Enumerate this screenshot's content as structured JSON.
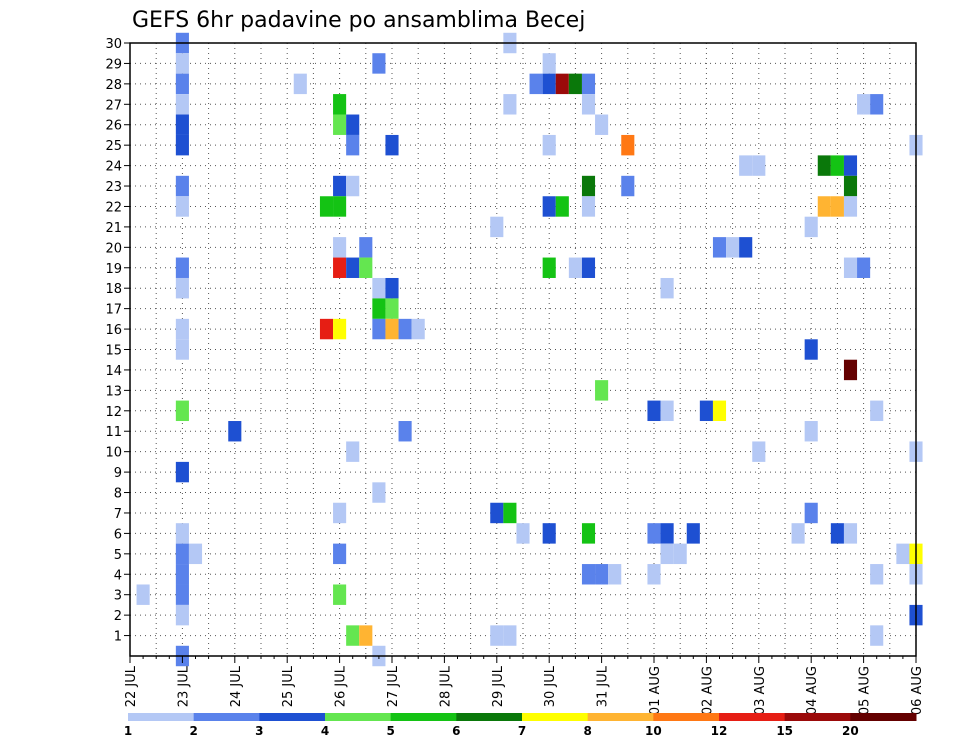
{
  "chart_data": {
    "type": "heatmap",
    "title": "GEFS 6hr padavine po ansamblima Becej",
    "x_tick_labels": [
      "22 JUL",
      "23 JUL",
      "24 JUL",
      "25 JUL",
      "26 JUL",
      "27 JUL",
      "28 JUL",
      "29 JUL",
      "30 JUL",
      "31 JUL",
      "01 AUG",
      "02 AUG",
      "03 AUG",
      "04 AUG",
      "05 AUG",
      "06 AUG"
    ],
    "y_tick_labels": [
      "1",
      "2",
      "3",
      "4",
      "5",
      "6",
      "7",
      "8",
      "9",
      "10",
      "11",
      "12",
      "13",
      "14",
      "15",
      "16",
      "17",
      "18",
      "19",
      "20",
      "21",
      "22",
      "23",
      "24",
      "25",
      "26",
      "27",
      "28",
      "29",
      "30"
    ],
    "x_range": [
      "22 JUL 00",
      "06 AUG 00"
    ],
    "y_range": [
      0,
      30
    ],
    "steps_per_day": 4,
    "grid": "dotted",
    "colorbar": {
      "placement": "bottom",
      "labels": [
        "1",
        "2",
        "3",
        "4",
        "5",
        "6",
        "7",
        "8",
        "10",
        "12",
        "15",
        "20"
      ],
      "colors": [
        "#b4c8f5",
        "#5a82eb",
        "#1e50d2",
        "#64e650",
        "#14c314",
        "#0a780a",
        "#ffff00",
        "#ffb432",
        "#ff7814",
        "#e61e14",
        "#9b0a0a",
        "#640000"
      ]
    },
    "cells": [
      {
        "t": 1,
        "m": 3,
        "c": 0
      },
      {
        "t": 4,
        "m": 30,
        "c": 1
      },
      {
        "t": 4,
        "m": 29,
        "c": 0
      },
      {
        "t": 4,
        "m": 28,
        "c": 1
      },
      {
        "t": 4,
        "m": 27,
        "c": 0
      },
      {
        "t": 4,
        "m": 26,
        "c": 2
      },
      {
        "t": 4,
        "m": 25,
        "c": 2
      },
      {
        "t": 4,
        "m": 23,
        "c": 1
      },
      {
        "t": 4,
        "m": 22,
        "c": 0
      },
      {
        "t": 4,
        "m": 19,
        "c": 1
      },
      {
        "t": 4,
        "m": 18,
        "c": 0
      },
      {
        "t": 4,
        "m": 16,
        "c": 0
      },
      {
        "t": 4,
        "m": 15,
        "c": 0
      },
      {
        "t": 4,
        "m": 12,
        "c": 3
      },
      {
        "t": 4,
        "m": 9,
        "c": 2
      },
      {
        "t": 4,
        "m": 6,
        "c": 0
      },
      {
        "t": 4,
        "m": 5,
        "c": 1
      },
      {
        "t": 4,
        "m": 4,
        "c": 1
      },
      {
        "t": 4,
        "m": 3,
        "c": 1
      },
      {
        "t": 4,
        "m": 2,
        "c": 0
      },
      {
        "t": 4,
        "m": 0,
        "c": 1
      },
      {
        "t": 5,
        "m": 5,
        "c": 0
      },
      {
        "t": 8,
        "m": 11,
        "c": 2
      },
      {
        "t": 13,
        "m": 28,
        "c": 0
      },
      {
        "t": 15,
        "m": 22,
        "c": 4
      },
      {
        "t": 15,
        "m": 16,
        "c": 9
      },
      {
        "t": 16,
        "m": 27,
        "c": 4
      },
      {
        "t": 16,
        "m": 26,
        "c": 3
      },
      {
        "t": 16,
        "m": 23,
        "c": 2
      },
      {
        "t": 16,
        "m": 22,
        "c": 4
      },
      {
        "t": 16,
        "m": 20,
        "c": 0
      },
      {
        "t": 16,
        "m": 19,
        "c": 9
      },
      {
        "t": 16,
        "m": 16,
        "c": 6
      },
      {
        "t": 16,
        "m": 7,
        "c": 0
      },
      {
        "t": 16,
        "m": 5,
        "c": 1
      },
      {
        "t": 16,
        "m": 3,
        "c": 3
      },
      {
        "t": 17,
        "m": 26,
        "c": 2
      },
      {
        "t": 17,
        "m": 25,
        "c": 1
      },
      {
        "t": 17,
        "m": 23,
        "c": 0
      },
      {
        "t": 17,
        "m": 19,
        "c": 2
      },
      {
        "t": 17,
        "m": 10,
        "c": 0
      },
      {
        "t": 17,
        "m": 1,
        "c": 3
      },
      {
        "t": 18,
        "m": 20,
        "c": 1
      },
      {
        "t": 18,
        "m": 19,
        "c": 3
      },
      {
        "t": 18,
        "m": 1,
        "c": 7
      },
      {
        "t": 19,
        "m": 29,
        "c": 1
      },
      {
        "t": 19,
        "m": 18,
        "c": 0
      },
      {
        "t": 19,
        "m": 17,
        "c": 4
      },
      {
        "t": 19,
        "m": 16,
        "c": 1
      },
      {
        "t": 19,
        "m": 8,
        "c": 0
      },
      {
        "t": 19,
        "m": 0,
        "c": 0
      },
      {
        "t": 20,
        "m": 25,
        "c": 2
      },
      {
        "t": 20,
        "m": 18,
        "c": 2
      },
      {
        "t": 20,
        "m": 17,
        "c": 3
      },
      {
        "t": 20,
        "m": 16,
        "c": 7
      },
      {
        "t": 21,
        "m": 16,
        "c": 1
      },
      {
        "t": 21,
        "m": 11,
        "c": 1
      },
      {
        "t": 22,
        "m": 16,
        "c": 0
      },
      {
        "t": 28,
        "m": 21,
        "c": 0
      },
      {
        "t": 28,
        "m": 7,
        "c": 2
      },
      {
        "t": 28,
        "m": 1,
        "c": 0
      },
      {
        "t": 29,
        "m": 30,
        "c": 0
      },
      {
        "t": 29,
        "m": 27,
        "c": 0
      },
      {
        "t": 29,
        "m": 7,
        "c": 4
      },
      {
        "t": 29,
        "m": 1,
        "c": 0
      },
      {
        "t": 30,
        "m": 6,
        "c": 0
      },
      {
        "t": 31,
        "m": 28,
        "c": 1
      },
      {
        "t": 32,
        "m": 29,
        "c": 0
      },
      {
        "t": 32,
        "m": 28,
        "c": 2
      },
      {
        "t": 32,
        "m": 25,
        "c": 0
      },
      {
        "t": 32,
        "m": 22,
        "c": 2
      },
      {
        "t": 32,
        "m": 19,
        "c": 4
      },
      {
        "t": 32,
        "m": 6,
        "c": 2
      },
      {
        "t": 33,
        "m": 28,
        "c": 10
      },
      {
        "t": 33,
        "m": 22,
        "c": 4
      },
      {
        "t": 34,
        "m": 28,
        "c": 5
      },
      {
        "t": 34,
        "m": 19,
        "c": 0
      },
      {
        "t": 35,
        "m": 28,
        "c": 1
      },
      {
        "t": 35,
        "m": 27,
        "c": 0
      },
      {
        "t": 35,
        "m": 23,
        "c": 5
      },
      {
        "t": 35,
        "m": 22,
        "c": 0
      },
      {
        "t": 35,
        "m": 19,
        "c": 2
      },
      {
        "t": 35,
        "m": 6,
        "c": 4
      },
      {
        "t": 35,
        "m": 4,
        "c": 1
      },
      {
        "t": 36,
        "m": 26,
        "c": 0
      },
      {
        "t": 36,
        "m": 13,
        "c": 3
      },
      {
        "t": 36,
        "m": 4,
        "c": 1
      },
      {
        "t": 37,
        "m": 4,
        "c": 0
      },
      {
        "t": 38,
        "m": 25,
        "c": 8
      },
      {
        "t": 38,
        "m": 23,
        "c": 1
      },
      {
        "t": 40,
        "m": 12,
        "c": 2
      },
      {
        "t": 40,
        "m": 6,
        "c": 1
      },
      {
        "t": 40,
        "m": 4,
        "c": 0
      },
      {
        "t": 41,
        "m": 18,
        "c": 0
      },
      {
        "t": 41,
        "m": 12,
        "c": 0
      },
      {
        "t": 41,
        "m": 6,
        "c": 2
      },
      {
        "t": 41,
        "m": 5,
        "c": 0
      },
      {
        "t": 42,
        "m": 5,
        "c": 0
      },
      {
        "t": 43,
        "m": 6,
        "c": 2
      },
      {
        "t": 44,
        "m": 12,
        "c": 2
      },
      {
        "t": 45,
        "m": 20,
        "c": 1
      },
      {
        "t": 45,
        "m": 12,
        "c": 6
      },
      {
        "t": 46,
        "m": 20,
        "c": 0
      },
      {
        "t": 47,
        "m": 24,
        "c": 0
      },
      {
        "t": 47,
        "m": 20,
        "c": 2
      },
      {
        "t": 48,
        "m": 24,
        "c": 0
      },
      {
        "t": 48,
        "m": 10,
        "c": 0
      },
      {
        "t": 51,
        "m": 6,
        "c": 0
      },
      {
        "t": 52,
        "m": 21,
        "c": 0
      },
      {
        "t": 52,
        "m": 15,
        "c": 2
      },
      {
        "t": 52,
        "m": 11,
        "c": 0
      },
      {
        "t": 52,
        "m": 7,
        "c": 1
      },
      {
        "t": 53,
        "m": 24,
        "c": 5
      },
      {
        "t": 53,
        "m": 22,
        "c": 7
      },
      {
        "t": 54,
        "m": 24,
        "c": 4
      },
      {
        "t": 54,
        "m": 22,
        "c": 7
      },
      {
        "t": 54,
        "m": 6,
        "c": 2
      },
      {
        "t": 55,
        "m": 24,
        "c": 2
      },
      {
        "t": 55,
        "m": 23,
        "c": 5
      },
      {
        "t": 55,
        "m": 22,
        "c": 0
      },
      {
        "t": 55,
        "m": 19,
        "c": 0
      },
      {
        "t": 55,
        "m": 14,
        "c": 11
      },
      {
        "t": 55,
        "m": 6,
        "c": 0
      },
      {
        "t": 56,
        "m": 27,
        "c": 0
      },
      {
        "t": 56,
        "m": 19,
        "c": 1
      },
      {
        "t": 57,
        "m": 27,
        "c": 1
      },
      {
        "t": 57,
        "m": 12,
        "c": 0
      },
      {
        "t": 57,
        "m": 4,
        "c": 0
      },
      {
        "t": 57,
        "m": 1,
        "c": 0
      },
      {
        "t": 59,
        "m": 5,
        "c": 0
      },
      {
        "t": 60,
        "m": 25,
        "c": 0
      },
      {
        "t": 60,
        "m": 10,
        "c": 0
      },
      {
        "t": 60,
        "m": 5,
        "c": 6
      },
      {
        "t": 60,
        "m": 4,
        "c": 0
      },
      {
        "t": 60,
        "m": 2,
        "c": 2
      }
    ]
  }
}
